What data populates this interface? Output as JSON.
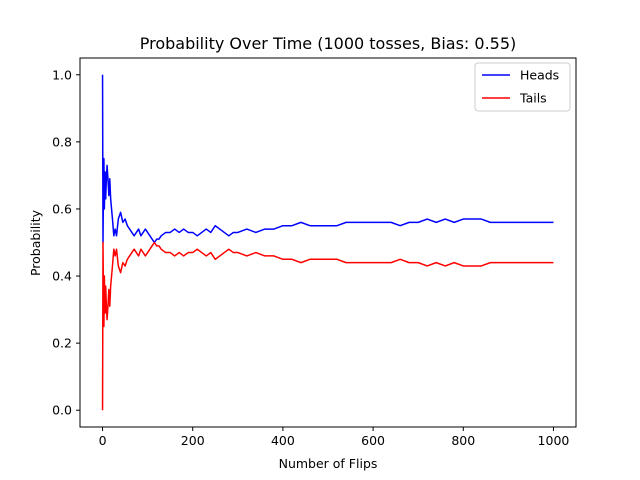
{
  "chart_data": {
    "type": "line",
    "title": "Probability Over Time (1000 tosses, Bias: 0.55)",
    "xlabel": "Number of Flips",
    "ylabel": "Probability",
    "xlim": [
      -50,
      1050
    ],
    "ylim": [
      -0.05,
      1.05
    ],
    "xticks": [
      0,
      200,
      400,
      600,
      800,
      1000
    ],
    "yticks": [
      0.0,
      0.2,
      0.4,
      0.6,
      0.8,
      1.0
    ],
    "xtick_labels": [
      "0",
      "200",
      "400",
      "600",
      "800",
      "1000"
    ],
    "ytick_labels": [
      "0.0",
      "0.2",
      "0.4",
      "0.6",
      "0.8",
      "1.0"
    ],
    "grid": false,
    "legend_position": "top-right",
    "series": [
      {
        "name": "Heads",
        "color": "#0000ff",
        "x": [
          0,
          1,
          2,
          3,
          4,
          5,
          6,
          7,
          8,
          9,
          10,
          12,
          14,
          16,
          18,
          20,
          22,
          25,
          28,
          31,
          35,
          40,
          45,
          50,
          55,
          60,
          65,
          70,
          75,
          80,
          85,
          90,
          95,
          100,
          105,
          110,
          115,
          120,
          125,
          130,
          140,
          150,
          160,
          170,
          180,
          190,
          200,
          210,
          220,
          230,
          240,
          250,
          260,
          270,
          280,
          290,
          300,
          320,
          340,
          360,
          380,
          400,
          420,
          440,
          460,
          480,
          500,
          520,
          540,
          560,
          580,
          600,
          620,
          640,
          660,
          680,
          700,
          720,
          740,
          760,
          780,
          800,
          820,
          840,
          860,
          880,
          900,
          920,
          940,
          960,
          980,
          1000
        ],
        "values": [
          1.0,
          0.5,
          0.67,
          0.75,
          0.6,
          0.67,
          0.71,
          0.63,
          0.67,
          0.7,
          0.73,
          0.69,
          0.64,
          0.69,
          0.63,
          0.6,
          0.57,
          0.52,
          0.54,
          0.52,
          0.57,
          0.59,
          0.56,
          0.57,
          0.55,
          0.54,
          0.53,
          0.52,
          0.53,
          0.54,
          0.52,
          0.53,
          0.54,
          0.53,
          0.52,
          0.51,
          0.5,
          0.51,
          0.51,
          0.52,
          0.53,
          0.53,
          0.54,
          0.53,
          0.54,
          0.53,
          0.53,
          0.52,
          0.53,
          0.54,
          0.53,
          0.55,
          0.54,
          0.53,
          0.52,
          0.53,
          0.53,
          0.54,
          0.53,
          0.54,
          0.54,
          0.55,
          0.55,
          0.56,
          0.55,
          0.55,
          0.55,
          0.55,
          0.56,
          0.56,
          0.56,
          0.56,
          0.56,
          0.56,
          0.55,
          0.56,
          0.56,
          0.57,
          0.56,
          0.57,
          0.56,
          0.57,
          0.57,
          0.57,
          0.56,
          0.56,
          0.56,
          0.56,
          0.56,
          0.56,
          0.56,
          0.56
        ]
      },
      {
        "name": "Tails",
        "color": "#ff0000",
        "x": [
          0,
          1,
          2,
          3,
          4,
          5,
          6,
          7,
          8,
          9,
          10,
          12,
          14,
          16,
          18,
          20,
          22,
          25,
          28,
          31,
          35,
          40,
          45,
          50,
          55,
          60,
          65,
          70,
          75,
          80,
          85,
          90,
          95,
          100,
          105,
          110,
          115,
          120,
          125,
          130,
          140,
          150,
          160,
          170,
          180,
          190,
          200,
          210,
          220,
          230,
          240,
          250,
          260,
          270,
          280,
          290,
          300,
          320,
          340,
          360,
          380,
          400,
          420,
          440,
          460,
          480,
          500,
          520,
          540,
          560,
          580,
          600,
          620,
          640,
          660,
          680,
          700,
          720,
          740,
          760,
          780,
          800,
          820,
          840,
          860,
          880,
          900,
          920,
          940,
          960,
          980,
          1000
        ],
        "values": [
          0.0,
          0.5,
          0.33,
          0.25,
          0.4,
          0.33,
          0.29,
          0.37,
          0.33,
          0.3,
          0.27,
          0.31,
          0.36,
          0.31,
          0.37,
          0.4,
          0.43,
          0.48,
          0.46,
          0.48,
          0.43,
          0.41,
          0.44,
          0.43,
          0.45,
          0.46,
          0.47,
          0.48,
          0.47,
          0.46,
          0.48,
          0.47,
          0.46,
          0.47,
          0.48,
          0.49,
          0.5,
          0.49,
          0.49,
          0.48,
          0.47,
          0.47,
          0.46,
          0.47,
          0.46,
          0.47,
          0.47,
          0.48,
          0.47,
          0.46,
          0.47,
          0.45,
          0.46,
          0.47,
          0.48,
          0.47,
          0.47,
          0.46,
          0.47,
          0.46,
          0.46,
          0.45,
          0.45,
          0.44,
          0.45,
          0.45,
          0.45,
          0.45,
          0.44,
          0.44,
          0.44,
          0.44,
          0.44,
          0.44,
          0.45,
          0.44,
          0.44,
          0.43,
          0.44,
          0.43,
          0.44,
          0.43,
          0.43,
          0.43,
          0.44,
          0.44,
          0.44,
          0.44,
          0.44,
          0.44,
          0.44,
          0.44
        ]
      }
    ]
  }
}
